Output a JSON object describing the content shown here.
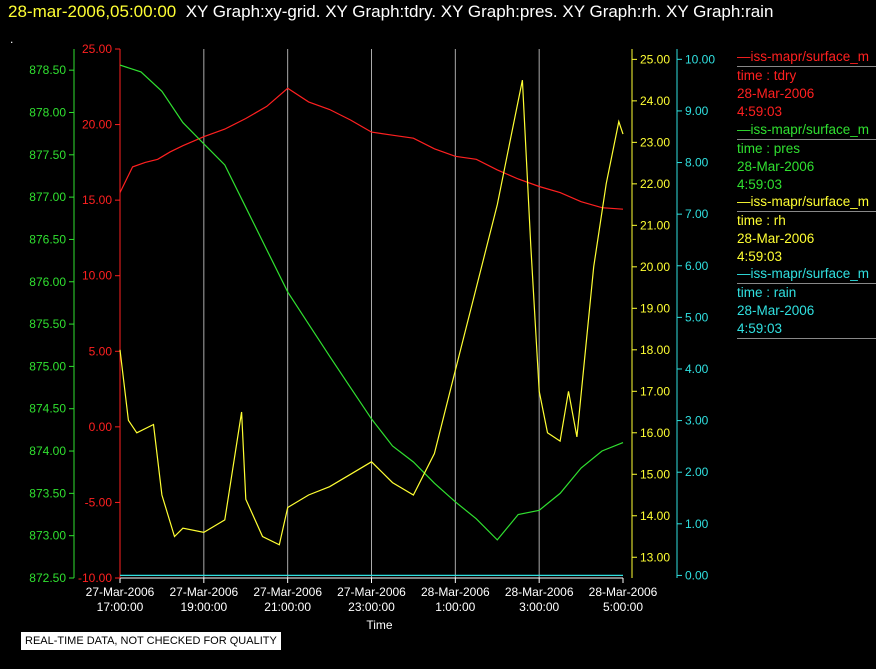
{
  "header": {
    "timestamp": "28-mar-2006,05:00:00",
    "items": "XY Graph:xy-grid.  XY Graph:tdry.  XY Graph:pres.  XY Graph:rh.  XY Graph:rain"
  },
  "dot": ".",
  "footer_note": "REAL-TIME DATA, NOT CHECKED FOR QUALITY",
  "colors": {
    "tdry": "#ff2020",
    "pres": "#30e030",
    "rh": "#ffff33",
    "rain": "#30e0e0",
    "grid": "#aaaaaa"
  },
  "legend": [
    {
      "source": "—iss-mapr/surface_m",
      "field": "time : tdry",
      "date": "28-Mar-2006",
      "time": "4:59:03",
      "color": "#ff2020"
    },
    {
      "source": "—iss-mapr/surface_m",
      "field": "time : pres",
      "date": "28-Mar-2006",
      "time": "4:59:03",
      "color": "#30e030"
    },
    {
      "source": "—iss-mapr/surface_m",
      "field": "time : rh",
      "date": "28-Mar-2006",
      "time": "4:59:03",
      "color": "#ffff33"
    },
    {
      "source": "—iss-mapr/surface_m",
      "field": "time : rain",
      "date": "28-Mar-2006",
      "time": "4:59:03",
      "color": "#30e0e0"
    }
  ],
  "chart_data": {
    "type": "line",
    "xlabel": "Time",
    "x_ticks": [
      {
        "d": "27-Mar-2006",
        "t": "17:00:00",
        "h": 0
      },
      {
        "d": "27-Mar-2006",
        "t": "19:00:00",
        "h": 2
      },
      {
        "d": "27-Mar-2006",
        "t": "21:00:00",
        "h": 4
      },
      {
        "d": "27-Mar-2006",
        "t": "23:00:00",
        "h": 6
      },
      {
        "d": "28-Mar-2006",
        "t": "1:00:00",
        "h": 8
      },
      {
        "d": "28-Mar-2006",
        "t": "3:00:00",
        "h": 10
      },
      {
        "d": "28-Mar-2006",
        "t": "5:00:00",
        "h": 12
      }
    ],
    "grid": true,
    "axes": {
      "pres": {
        "ylim": [
          872.5,
          878.75
        ],
        "ticks": [
          "872.50",
          "873.00",
          "873.50",
          "874.00",
          "874.50",
          "875.00",
          "875.50",
          "876.00",
          "876.50",
          "877.00",
          "877.50",
          "878.00",
          "878.50"
        ]
      },
      "tdry": {
        "ylim": [
          -10,
          25
        ],
        "ticks": [
          "-10.00",
          "-5.00",
          "0.00",
          "5.00",
          "10.00",
          "15.00",
          "20.00",
          "25.00"
        ]
      },
      "rh": {
        "ylim": [
          12.5,
          25.25
        ],
        "ticks": [
          "13.00",
          "14.00",
          "15.00",
          "16.00",
          "17.00",
          "18.00",
          "19.00",
          "20.00",
          "21.00",
          "22.00",
          "23.00",
          "24.00",
          "25.00"
        ]
      },
      "rain": {
        "ylim": [
          -0.05,
          10.2
        ],
        "ticks": [
          "0.00",
          "1.00",
          "2.00",
          "3.00",
          "4.00",
          "5.00",
          "6.00",
          "7.00",
          "8.00",
          "9.00",
          "10.00"
        ]
      }
    },
    "series": [
      {
        "axis": "tdry",
        "x": [
          0,
          0.3,
          0.6,
          0.9,
          1.2,
          1.5,
          2,
          2.5,
          3,
          3.5,
          4,
          4.5,
          5,
          5.5,
          6,
          6.5,
          7,
          7.5,
          8,
          8.5,
          9,
          9.5,
          10,
          10.5,
          11,
          11.5,
          12
        ],
        "y": [
          15.5,
          17.2,
          17.5,
          17.7,
          18.2,
          18.6,
          19.2,
          19.7,
          20.4,
          21.2,
          22.4,
          21.5,
          21.0,
          20.3,
          19.5,
          19.3,
          19.1,
          18.4,
          17.9,
          17.7,
          17.0,
          16.4,
          15.9,
          15.5,
          14.9,
          14.5,
          14.4
        ]
      },
      {
        "axis": "pres",
        "x": [
          0,
          0.5,
          1,
          1.5,
          2,
          2.5,
          3,
          3.5,
          4,
          4.5,
          5,
          5.5,
          6,
          6.5,
          7,
          7.5,
          8,
          8.5,
          9,
          9.5,
          10,
          10.5,
          11,
          11.5,
          12
        ],
        "y": [
          878.56,
          878.48,
          878.25,
          877.88,
          877.63,
          877.38,
          876.88,
          876.38,
          875.88,
          875.5,
          875.12,
          874.75,
          874.38,
          874.06,
          873.87,
          873.62,
          873.4,
          873.2,
          872.95,
          873.25,
          873.3,
          873.5,
          873.8,
          874.0,
          874.1
        ]
      },
      {
        "axis": "rh",
        "x": [
          0,
          0.2,
          0.4,
          0.8,
          1.0,
          1.3,
          1.5,
          2,
          2.5,
          2.9,
          3.0,
          3.4,
          3.8,
          4,
          4.5,
          5,
          5.5,
          6,
          6.5,
          7,
          7.5,
          8,
          8.5,
          9,
          9.3,
          9.6,
          9.8,
          10,
          10.2,
          10.5,
          10.7,
          10.9,
          11.3,
          11.6,
          11.9,
          12
        ],
        "y": [
          18.0,
          16.3,
          16.0,
          16.2,
          14.5,
          13.5,
          13.7,
          13.6,
          13.9,
          16.5,
          14.4,
          13.5,
          13.3,
          14.2,
          14.5,
          14.7,
          15.0,
          15.3,
          14.8,
          14.5,
          15.5,
          17.5,
          19.5,
          21.5,
          23.0,
          24.5,
          20.5,
          17.0,
          16.0,
          15.8,
          17.0,
          15.9,
          20.0,
          22.0,
          23.5,
          23.2
        ]
      },
      {
        "axis": "rain",
        "x": [
          0,
          12
        ],
        "y": [
          0,
          0
        ]
      }
    ]
  }
}
